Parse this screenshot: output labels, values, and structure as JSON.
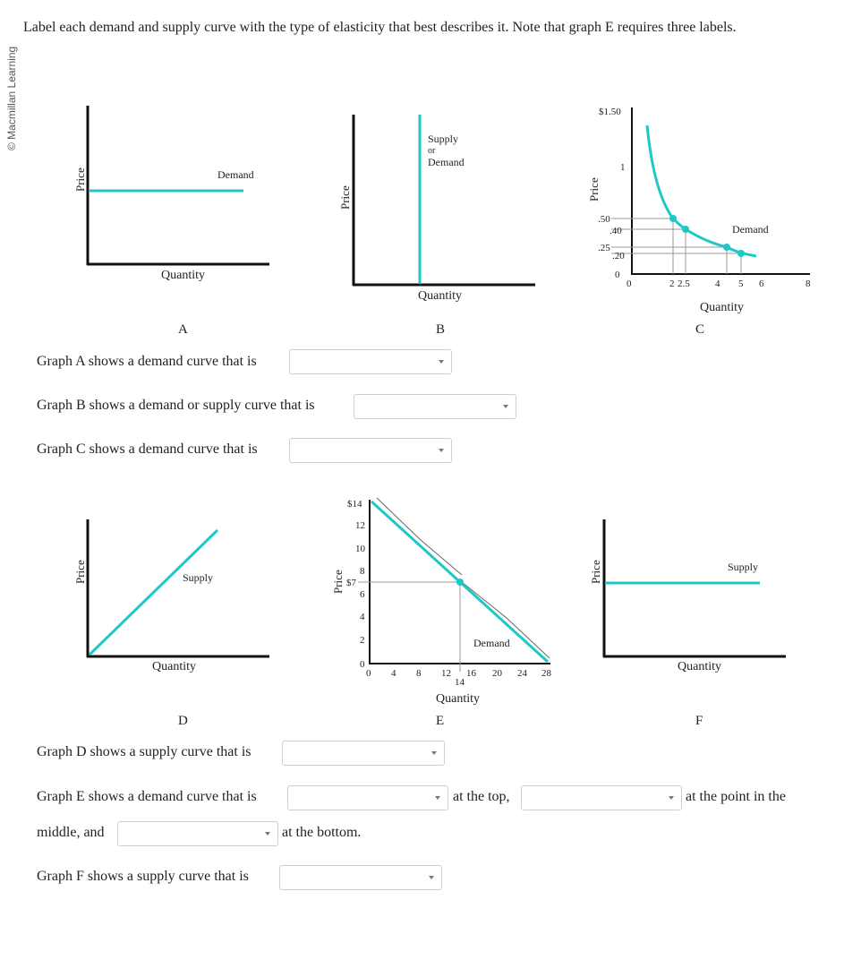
{
  "credit": "© Macmillan Learning",
  "instructions": "Label each demand and supply curve with the type of elasticity that best describes it. Note that graph E requires three labels.",
  "graphs": {
    "A": {
      "letter": "A",
      "ylabel": "Price",
      "xlabel": "Quantity",
      "curve_label": "Demand"
    },
    "B": {
      "letter": "B",
      "ylabel": "Price",
      "xlabel": "Quantity",
      "curve_label_1": "Supply",
      "curve_label_2": "or",
      "curve_label_3": "Demand"
    },
    "C": {
      "letter": "C",
      "ylabel": "Price",
      "xlabel": "Quantity",
      "curve_label": "Demand",
      "yticks": [
        "$1.50",
        "1",
        ".50",
        ".40",
        ".25",
        ".20",
        "0"
      ],
      "xticks": [
        "0",
        "2",
        "2.5",
        "4",
        "5",
        "6",
        "8"
      ]
    },
    "D": {
      "letter": "D",
      "ylabel": "Price",
      "xlabel": "Quantity",
      "curve_label": "Supply"
    },
    "E": {
      "letter": "E",
      "ylabel": "Price",
      "xlabel": "Quantity",
      "curve_label": "Demand",
      "yticks": [
        "$14",
        "12",
        "10",
        "8",
        "$7",
        "6",
        "4",
        "2",
        "0"
      ],
      "xticks": [
        "0",
        "4",
        "8",
        "12",
        "14",
        "16",
        "20",
        "24",
        "28"
      ]
    },
    "F": {
      "letter": "F",
      "ylabel": "Price",
      "xlabel": "Quantity",
      "curve_label": "Supply"
    }
  },
  "questions": {
    "a": "Graph A shows a demand curve that is",
    "b": "Graph B shows a demand or supply curve that is",
    "c": "Graph C shows a demand curve that is",
    "d": "Graph D shows a supply curve that is",
    "e_prefix": "Graph E shows a demand curve that is",
    "e_top": "at the top,",
    "e_middle_pre": "at the point in the",
    "e_middle_word": "middle, and",
    "e_bottom": "at the bottom.",
    "f": "Graph F shows a supply curve that is"
  },
  "dropdowns": {
    "a": "",
    "b": "",
    "c": "",
    "d": "",
    "e1": "",
    "e2": "",
    "e3": "",
    "f": ""
  },
  "colors": {
    "curve": "#1ec8c8",
    "axis": "#111111",
    "guide": "#9a9a9a"
  }
}
